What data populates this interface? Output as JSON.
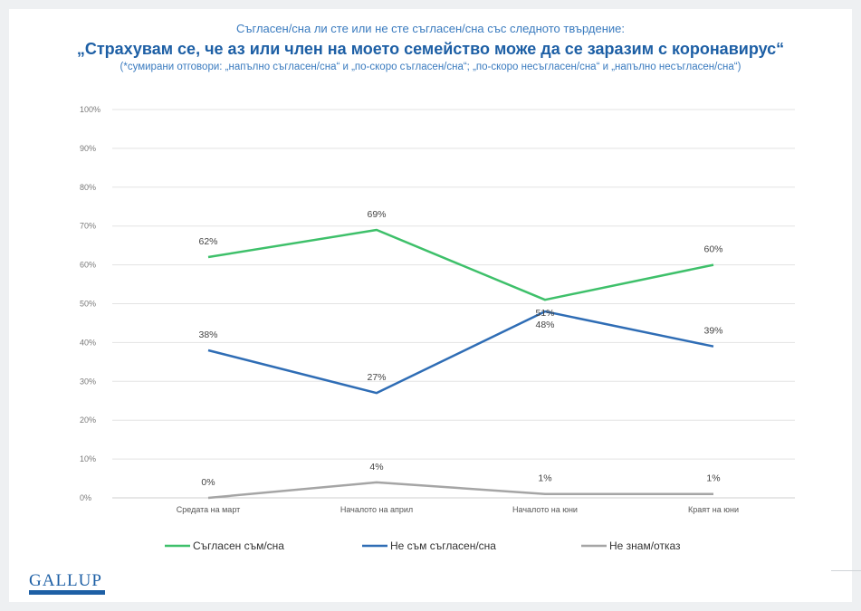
{
  "header": {
    "question": "Съгласен/сна ли сте или не сте съгласен/сна със следното твърдение:",
    "statement": "„Страхувам се, че аз или член на моето семейство може да се заразим с коронавирус“",
    "note": "(*сумирани отговори: „напълно съгласен/сна“ и „по-скоро съгласен/сна“; „по-скоро несъгласен/сна“ и „напълно несъгласен/сна“)"
  },
  "chart_data": {
    "type": "line",
    "categories": [
      "Средата на март",
      "Началото на април",
      "Началото на юни",
      "Краят на юни"
    ],
    "ylim": [
      0,
      100
    ],
    "yticks": [
      "0%",
      "10%",
      "20%",
      "30%",
      "40%",
      "50%",
      "60%",
      "70%",
      "80%",
      "90%",
      "100%"
    ],
    "grid": true,
    "legend_position": "bottom",
    "series": [
      {
        "name": "Съгласен съм/сна",
        "values": [
          62,
          69,
          51,
          60
        ],
        "labels": [
          "62%",
          "69%",
          "51%",
          "60%"
        ],
        "color": "#3ec06a"
      },
      {
        "name": "Не съм съгласен/сна",
        "values": [
          38,
          27,
          48,
          39
        ],
        "labels": [
          "38%",
          "27%",
          "48%",
          "39%"
        ],
        "color": "#2f6db5"
      },
      {
        "name": "Не знам/отказ",
        "values": [
          0,
          4,
          1,
          1
        ],
        "labels": [
          "0%",
          "4%",
          "1%",
          "1%"
        ],
        "color": "#a5a5a5"
      }
    ]
  },
  "logo": {
    "text": "GALLUP"
  }
}
